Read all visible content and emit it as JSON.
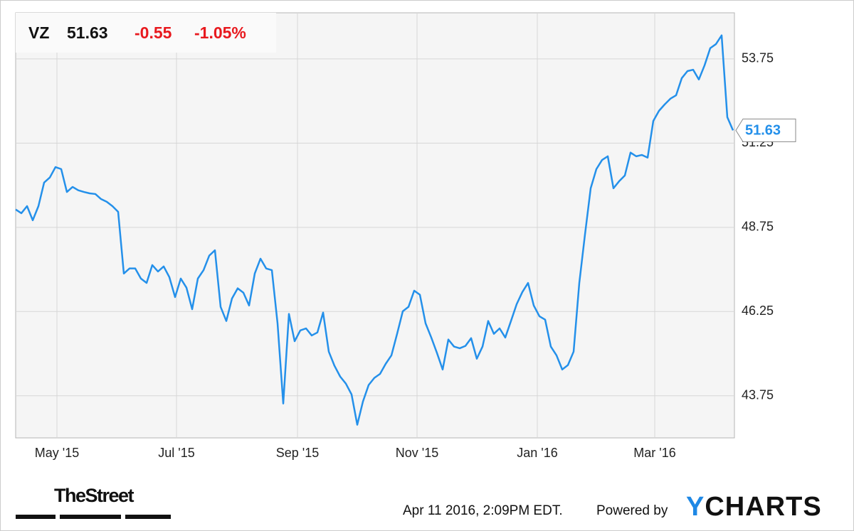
{
  "header": {
    "symbol": "VZ",
    "price": "51.63",
    "change": "-0.55",
    "change_pct": "-1.05%"
  },
  "chart_data": {
    "type": "line",
    "xlim": [
      0,
      126.25
    ],
    "xticks": [
      {
        "value": 7.25,
        "label": "May '15"
      },
      {
        "value": 28.25,
        "label": "Jul '15"
      },
      {
        "value": 49.5,
        "label": "Sep '15"
      },
      {
        "value": 70.5,
        "label": "Nov '15"
      },
      {
        "value": 91.625,
        "label": "Jan '16"
      },
      {
        "value": 112.25,
        "label": "Mar '16"
      }
    ],
    "ylim": [
      42.5,
      55.12
    ],
    "yticks": [
      43.75,
      46.25,
      48.75,
      51.25,
      53.75
    ],
    "grid": true,
    "series": [
      {
        "color": "#2490ea",
        "values": [
          49.28,
          49.17,
          49.38,
          48.96,
          49.38,
          50.08,
          50.23,
          50.54,
          50.48,
          49.8,
          49.95,
          49.85,
          49.8,
          49.76,
          49.74,
          49.59,
          49.51,
          49.38,
          49.21,
          47.38,
          47.53,
          47.53,
          47.23,
          47.1,
          47.63,
          47.44,
          47.59,
          47.27,
          46.68,
          47.23,
          46.96,
          46.32,
          47.23,
          47.48,
          47.91,
          48.07,
          46.39,
          45.97,
          46.64,
          46.94,
          46.81,
          46.43,
          47.38,
          47.82,
          47.53,
          47.48,
          45.9,
          43.52,
          46.18,
          45.37,
          45.69,
          45.75,
          45.54,
          45.63,
          46.22,
          45.06,
          44.64,
          44.32,
          44.11,
          43.79,
          42.89,
          43.58,
          44.07,
          44.28,
          44.4,
          44.7,
          44.95,
          45.59,
          46.26,
          46.39,
          46.87,
          46.75,
          45.9,
          45.48,
          45.02,
          44.53,
          45.42,
          45.21,
          45.16,
          45.23,
          45.46,
          44.85,
          45.21,
          45.97,
          45.59,
          45.75,
          45.48,
          45.97,
          46.47,
          46.83,
          47.1,
          46.43,
          46.11,
          46.01,
          45.21,
          44.95,
          44.53,
          44.66,
          45.06,
          47.1,
          48.54,
          49.91,
          50.48,
          50.75,
          50.86,
          49.91,
          50.12,
          50.29,
          50.97,
          50.86,
          50.9,
          50.82,
          51.91,
          52.21,
          52.4,
          52.57,
          52.67,
          53.18,
          53.39,
          53.43,
          53.14,
          53.56,
          54.07,
          54.19,
          54.45,
          52.02,
          51.63
        ]
      }
    ]
  },
  "footer": {
    "source": "TheStreet",
    "timestamp": "Apr 11 2016, 2:09PM EDT.",
    "powered_by": "Powered by",
    "brand": "YCHARTS"
  }
}
